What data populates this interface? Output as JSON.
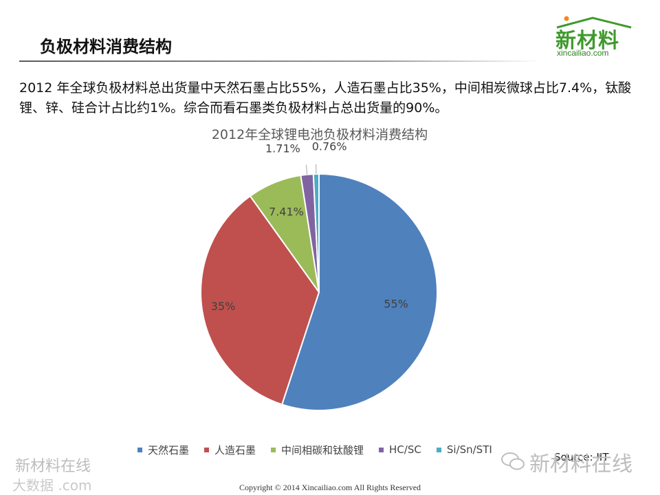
{
  "slide": {
    "title": "负极材料消费结构",
    "summary": "2012 年全球负极材料总出货量中天然石墨占比55%，人造石墨占比35%，中间相炭微球占比7.4%，钛酸锂、锌、硅合计占比约1%。综合而看石墨类负极材料占总出货量的90%。"
  },
  "logo": {
    "main": "新材料",
    "sub": "xincailiao.com"
  },
  "chart_data": {
    "type": "pie",
    "title": "2012年全球锂电池负极材料消费结构",
    "categories": [
      "天然石墨",
      "人造石墨",
      "中间相碳和钛酸锂",
      "HC/SC",
      "Si/Sn/STI"
    ],
    "values": [
      55,
      35,
      7.41,
      1.71,
      0.76
    ],
    "labels": [
      "55%",
      "35%",
      "7.41%",
      "1.71%",
      "0.76%"
    ],
    "colors": [
      "#4f81bd",
      "#c0504d",
      "#9bbb59",
      "#8064a2",
      "#4bacc6"
    ],
    "legend_position": "bottom"
  },
  "source": "Source: IIT",
  "watermarks": {
    "left_top": "新材料在线",
    "left_bottom": "大数据 .com",
    "right": "新材料在线"
  },
  "footer": {
    "copyright": "Copyright © 2014   Xincailiao.com    All Rights Reserved"
  }
}
